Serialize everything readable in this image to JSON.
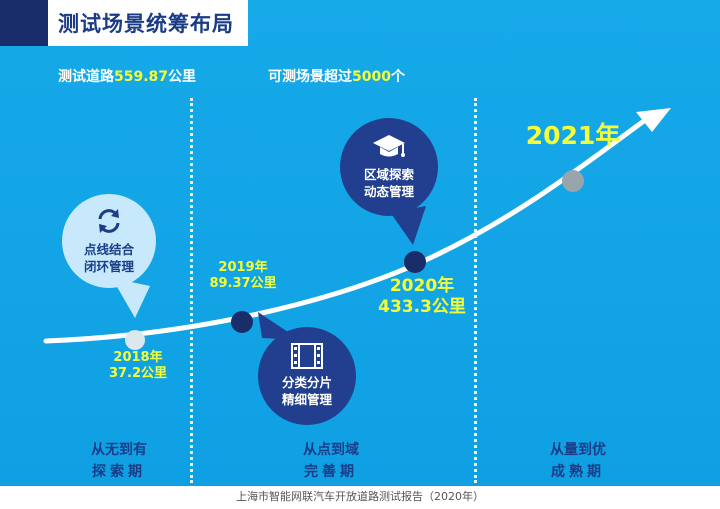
{
  "title": "测试场景统筹布局",
  "stats": [
    {
      "label": "测试道路",
      "value": "559.87",
      "unit": "公里"
    },
    {
      "label": "可测场景超过",
      "value": "5000",
      "unit": "个"
    }
  ],
  "milestones": [
    {
      "year": "2018年",
      "mileage": "37.2公里"
    },
    {
      "year": "2019年",
      "mileage": "89.37公里"
    },
    {
      "year": "2020年",
      "mileage": "433.3公里"
    },
    {
      "year": "2021年"
    }
  ],
  "bubbles": [
    {
      "line1": "点线结合",
      "line2": "闭环管理",
      "icon": "refresh-cycle-icon"
    },
    {
      "line1": "分类分片",
      "line2": "精细管理",
      "icon": "film-strip-icon"
    },
    {
      "line1": "区域探索",
      "line2": "动态管理",
      "icon": "graduation-cap-icon"
    }
  ],
  "phases": [
    {
      "line1": "从无到有",
      "line2": "探索期"
    },
    {
      "line1": "从点到域",
      "line2": "完善期"
    },
    {
      "line1": "从量到优",
      "line2": "成熟期"
    }
  ],
  "footer": "上海市智能网联汽车开放道路测试报告（2020年）",
  "colors": {
    "panel": "#12a5e6",
    "navy": "#1a2d6b",
    "highlight": "#f4ff3a",
    "bubble_light": "#c7e9fb",
    "bubble_dark": "#213f8e"
  }
}
